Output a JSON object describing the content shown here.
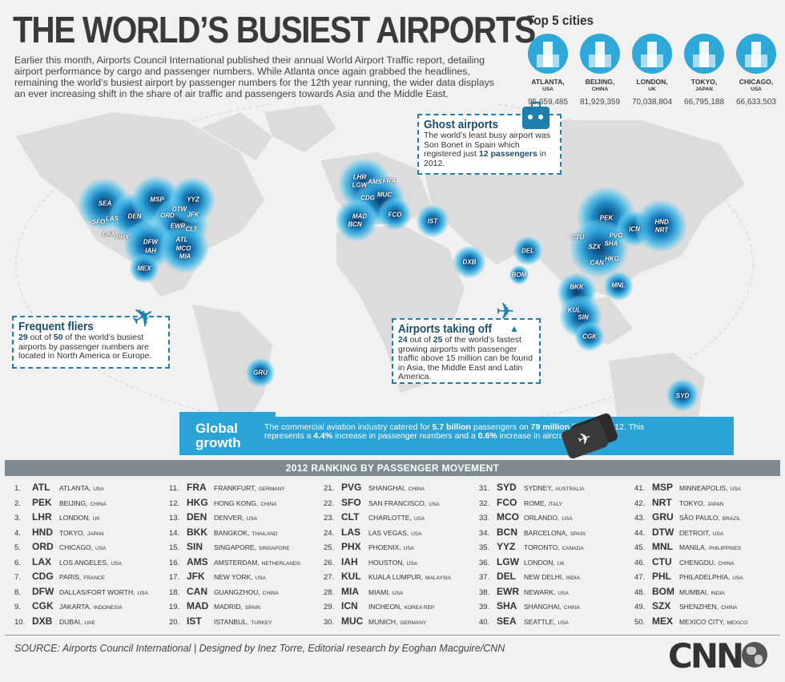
{
  "title": "THE WORLD’S BUSIEST AIRPORTS",
  "intro": "Earlier this month, Airports Council International published their annual World Airport Traffic report, detailing airport performance by cargo and passenger numbers. While Atlanta once again grabbed the headlines, remaining the world’s busiest airport by passenger numbers for the 12th year running, the wider data displays an ever increasing shift in the share of air traffic and passengers towards Asia and the Middle East.",
  "top5": {
    "title": "Top 5 cities",
    "cities": [
      {
        "name": "ATLANTA,",
        "country": "USA",
        "value": "95,659,485",
        "icon": "skyscraper-icon"
      },
      {
        "name": "BEIJING,",
        "country": "CHINA",
        "value": "81,929,359",
        "icon": "great-wall-icon"
      },
      {
        "name": "LONDON,",
        "country": "UK",
        "value": "70,038,804",
        "icon": "big-ben-icon"
      },
      {
        "name": "TOKYO,",
        "country": "JAPAN",
        "value": "66,795,188",
        "icon": "torii-gate-icon"
      },
      {
        "name": "CHICAGO,",
        "country": "USA",
        "value": "66,633,503",
        "icon": "tower-icon"
      }
    ]
  },
  "colors": {
    "accent": "#2ba3d6",
    "dark": "#1a4e6e",
    "dashed": "#1d7fad",
    "map": "#dcdcdc"
  },
  "ghost": {
    "title": "Ghost airports",
    "text1": "The world’s least busy airport was Son Bonet in Spain which registered just ",
    "bold": "12 passengers",
    "text2": " in 2012."
  },
  "frequent": {
    "title": "Frequent fliers",
    "n1": "29",
    "t1": " out of ",
    "n2": "50",
    "t2": " of the world’s busiest airports by passenger numbers are located in North America or Europe."
  },
  "takingoff": {
    "title": "Airports taking off",
    "n1": "24",
    "t1": " out of ",
    "n2": "25",
    "t2": " of the world’s fastest growing airports with passenger traffic above 15 million can be found in Asia, the Middle East and Latin America."
  },
  "growth": {
    "title1": "Global",
    "title2": "growth",
    "p1": "The commercial aviation industry catered for ",
    "b1": "5.7 billion",
    "p2": " passengers on ",
    "b2": "79 million",
    "p3": " flights in 2012. This represents a ",
    "b3": "4.4%",
    "p4": " increase in passenger numbers and a ",
    "b4": "0.6%",
    "p5": " increase in aircraft movement."
  },
  "ranking_title": "2012 RANKING BY PASSENGER MOVEMENT",
  "ranking": [
    {
      "n": "1.",
      "code": "ATL",
      "city": "ATLANTA,",
      "country": "USA"
    },
    {
      "n": "2.",
      "code": "PEK",
      "city": "BEIJING,",
      "country": "CHINA"
    },
    {
      "n": "3.",
      "code": "LHR",
      "city": "LONDON,",
      "country": "UK"
    },
    {
      "n": "4.",
      "code": "HND",
      "city": "TOKYO,",
      "country": "JAPAN"
    },
    {
      "n": "5.",
      "code": "ORD",
      "city": "CHICAGO,",
      "country": "USA"
    },
    {
      "n": "6.",
      "code": "LAX",
      "city": "LOS ANGELES,",
      "country": "USA"
    },
    {
      "n": "7.",
      "code": "CDG",
      "city": "PARIS,",
      "country": "FRANCE"
    },
    {
      "n": "8.",
      "code": "DFW",
      "city": "DALLAS/FORT WORTH,",
      "country": "USA"
    },
    {
      "n": "9.",
      "code": "CGK",
      "city": "JAKARTA,",
      "country": "INDONESIA"
    },
    {
      "n": "10.",
      "code": "DXB",
      "city": "DUBAI,",
      "country": "UAE"
    },
    {
      "n": "11.",
      "code": "FRA",
      "city": "FRANKFURT,",
      "country": "GERMANY"
    },
    {
      "n": "12.",
      "code": "HKG",
      "city": "HONG KONG,",
      "country": "CHINA"
    },
    {
      "n": "13.",
      "code": "DEN",
      "city": "DENVER,",
      "country": "USA"
    },
    {
      "n": "14.",
      "code": "BKK",
      "city": "BANGKOK,",
      "country": "THAILAND"
    },
    {
      "n": "15.",
      "code": "SIN",
      "city": "SINGAPORE,",
      "country": "SINGAPORE"
    },
    {
      "n": "16.",
      "code": "AMS",
      "city": "AMSTERDAM,",
      "country": "NETHERLANDS"
    },
    {
      "n": "17.",
      "code": "JFK",
      "city": "NEW YORK,",
      "country": "USA"
    },
    {
      "n": "18.",
      "code": "CAN",
      "city": "GUANGZHOU,",
      "country": "CHINA"
    },
    {
      "n": "19.",
      "code": "MAD",
      "city": "MADRID,",
      "country": "SPAIN"
    },
    {
      "n": "20.",
      "code": "IST",
      "city": "ISTANBUL,",
      "country": "TURKEY"
    },
    {
      "n": "21.",
      "code": "PVG",
      "city": "SHANGHAI,",
      "country": "CHINA"
    },
    {
      "n": "22.",
      "code": "SFO",
      "city": "SAN FRANCISCO,",
      "country": "USA"
    },
    {
      "n": "23.",
      "code": "CLT",
      "city": "CHARLOTTE,",
      "country": "USA"
    },
    {
      "n": "24.",
      "code": "LAS",
      "city": "LAS VEGAS,",
      "country": "USA"
    },
    {
      "n": "25.",
      "code": "PHX",
      "city": "PHOENIX,",
      "country": "USA"
    },
    {
      "n": "26.",
      "code": "IAH",
      "city": "HOUSTON,",
      "country": "USA"
    },
    {
      "n": "27.",
      "code": "KUL",
      "city": "KUALA LUMPUR,",
      "country": "MALAYSIA"
    },
    {
      "n": "28.",
      "code": "MIA",
      "city": "MIAMI,",
      "country": "USA"
    },
    {
      "n": "29.",
      "code": "ICN",
      "city": "INCHEON,",
      "country": "KOREA REP"
    },
    {
      "n": "30.",
      "code": "MUC",
      "city": "MUNICH,",
      "country": "GERMANY"
    },
    {
      "n": "31.",
      "code": "SYD",
      "city": "SYDNEY,",
      "country": "AUSTRALIA"
    },
    {
      "n": "32.",
      "code": "FCO",
      "city": "ROME,",
      "country": "ITALY"
    },
    {
      "n": "33.",
      "code": "MCO",
      "city": "ORLANDO,",
      "country": "USA"
    },
    {
      "n": "34.",
      "code": "BCN",
      "city": "BARCELONA,",
      "country": "SPAIN"
    },
    {
      "n": "35.",
      "code": "YYZ",
      "city": "TORONTO,",
      "country": "CANADA"
    },
    {
      "n": "36.",
      "code": "LGW",
      "city": "LONDON,",
      "country": "UK"
    },
    {
      "n": "37.",
      "code": "DEL",
      "city": "NEW DELHI,",
      "country": "INDIA"
    },
    {
      "n": "38.",
      "code": "EWR",
      "city": "NEWARK,",
      "country": "USA"
    },
    {
      "n": "39.",
      "code": "SHA",
      "city": "SHANGHAI,",
      "country": "CHINA"
    },
    {
      "n": "40.",
      "code": "SEA",
      "city": "SEATTLE,",
      "country": "USA"
    },
    {
      "n": "41.",
      "code": "MSP",
      "city": "MINNEAPOLIS,",
      "country": "USA"
    },
    {
      "n": "42.",
      "code": "NRT",
      "city": "TOKYO,",
      "country": "JAPAN"
    },
    {
      "n": "43.",
      "code": "GRU",
      "city": "SÃO PAULO,",
      "country": "BRAZIL"
    },
    {
      "n": "44.",
      "code": "DTW",
      "city": "DETROIT,",
      "country": "USA"
    },
    {
      "n": "45.",
      "code": "MNL",
      "city": "MANILA,",
      "country": "PHILIPPINES"
    },
    {
      "n": "46.",
      "code": "CTU",
      "city": "CHENGDU,",
      "country": "CHINA"
    },
    {
      "n": "47.",
      "code": "PHL",
      "city": "PHILADELPHIA,",
      "country": "USA"
    },
    {
      "n": "48.",
      "code": "BOM",
      "city": "MUMBAI,",
      "country": "INDIA"
    },
    {
      "n": "49.",
      "code": "SZX",
      "city": "SHENZHEN,",
      "country": "CHINA"
    },
    {
      "n": "50.",
      "code": "MEX",
      "city": "MEXICO CITY,",
      "country": "MEXICO"
    }
  ],
  "map_airports": [
    "SEA",
    "SFO",
    "LAS",
    "LAX",
    "PHX",
    "DEN",
    "MSP",
    "ORD",
    "DTW",
    "YYZ",
    "JFK",
    "EWR",
    "CLT",
    "ATL",
    "DFW",
    "IAH",
    "MCO",
    "MIA",
    "MEX",
    "GRU",
    "LHR",
    "LGW",
    "AMS",
    "FRA",
    "CDG",
    "MUC",
    "MAD",
    "BCN",
    "FCO",
    "IST",
    "DXB",
    "DEL",
    "BOM",
    "PEK",
    "CTU",
    "SZX",
    "PVG",
    "SHA",
    "CAN",
    "HKG",
    "ICN",
    "HND",
    "NRT",
    "BKK",
    "MNL",
    "KUL",
    "SIN",
    "CGK",
    "SYD"
  ],
  "source": "SOURCE: Airports Council International  |  Designed by Inez Torre, Editorial research by Eoghan Macguire/CNN",
  "logo": "CNN"
}
